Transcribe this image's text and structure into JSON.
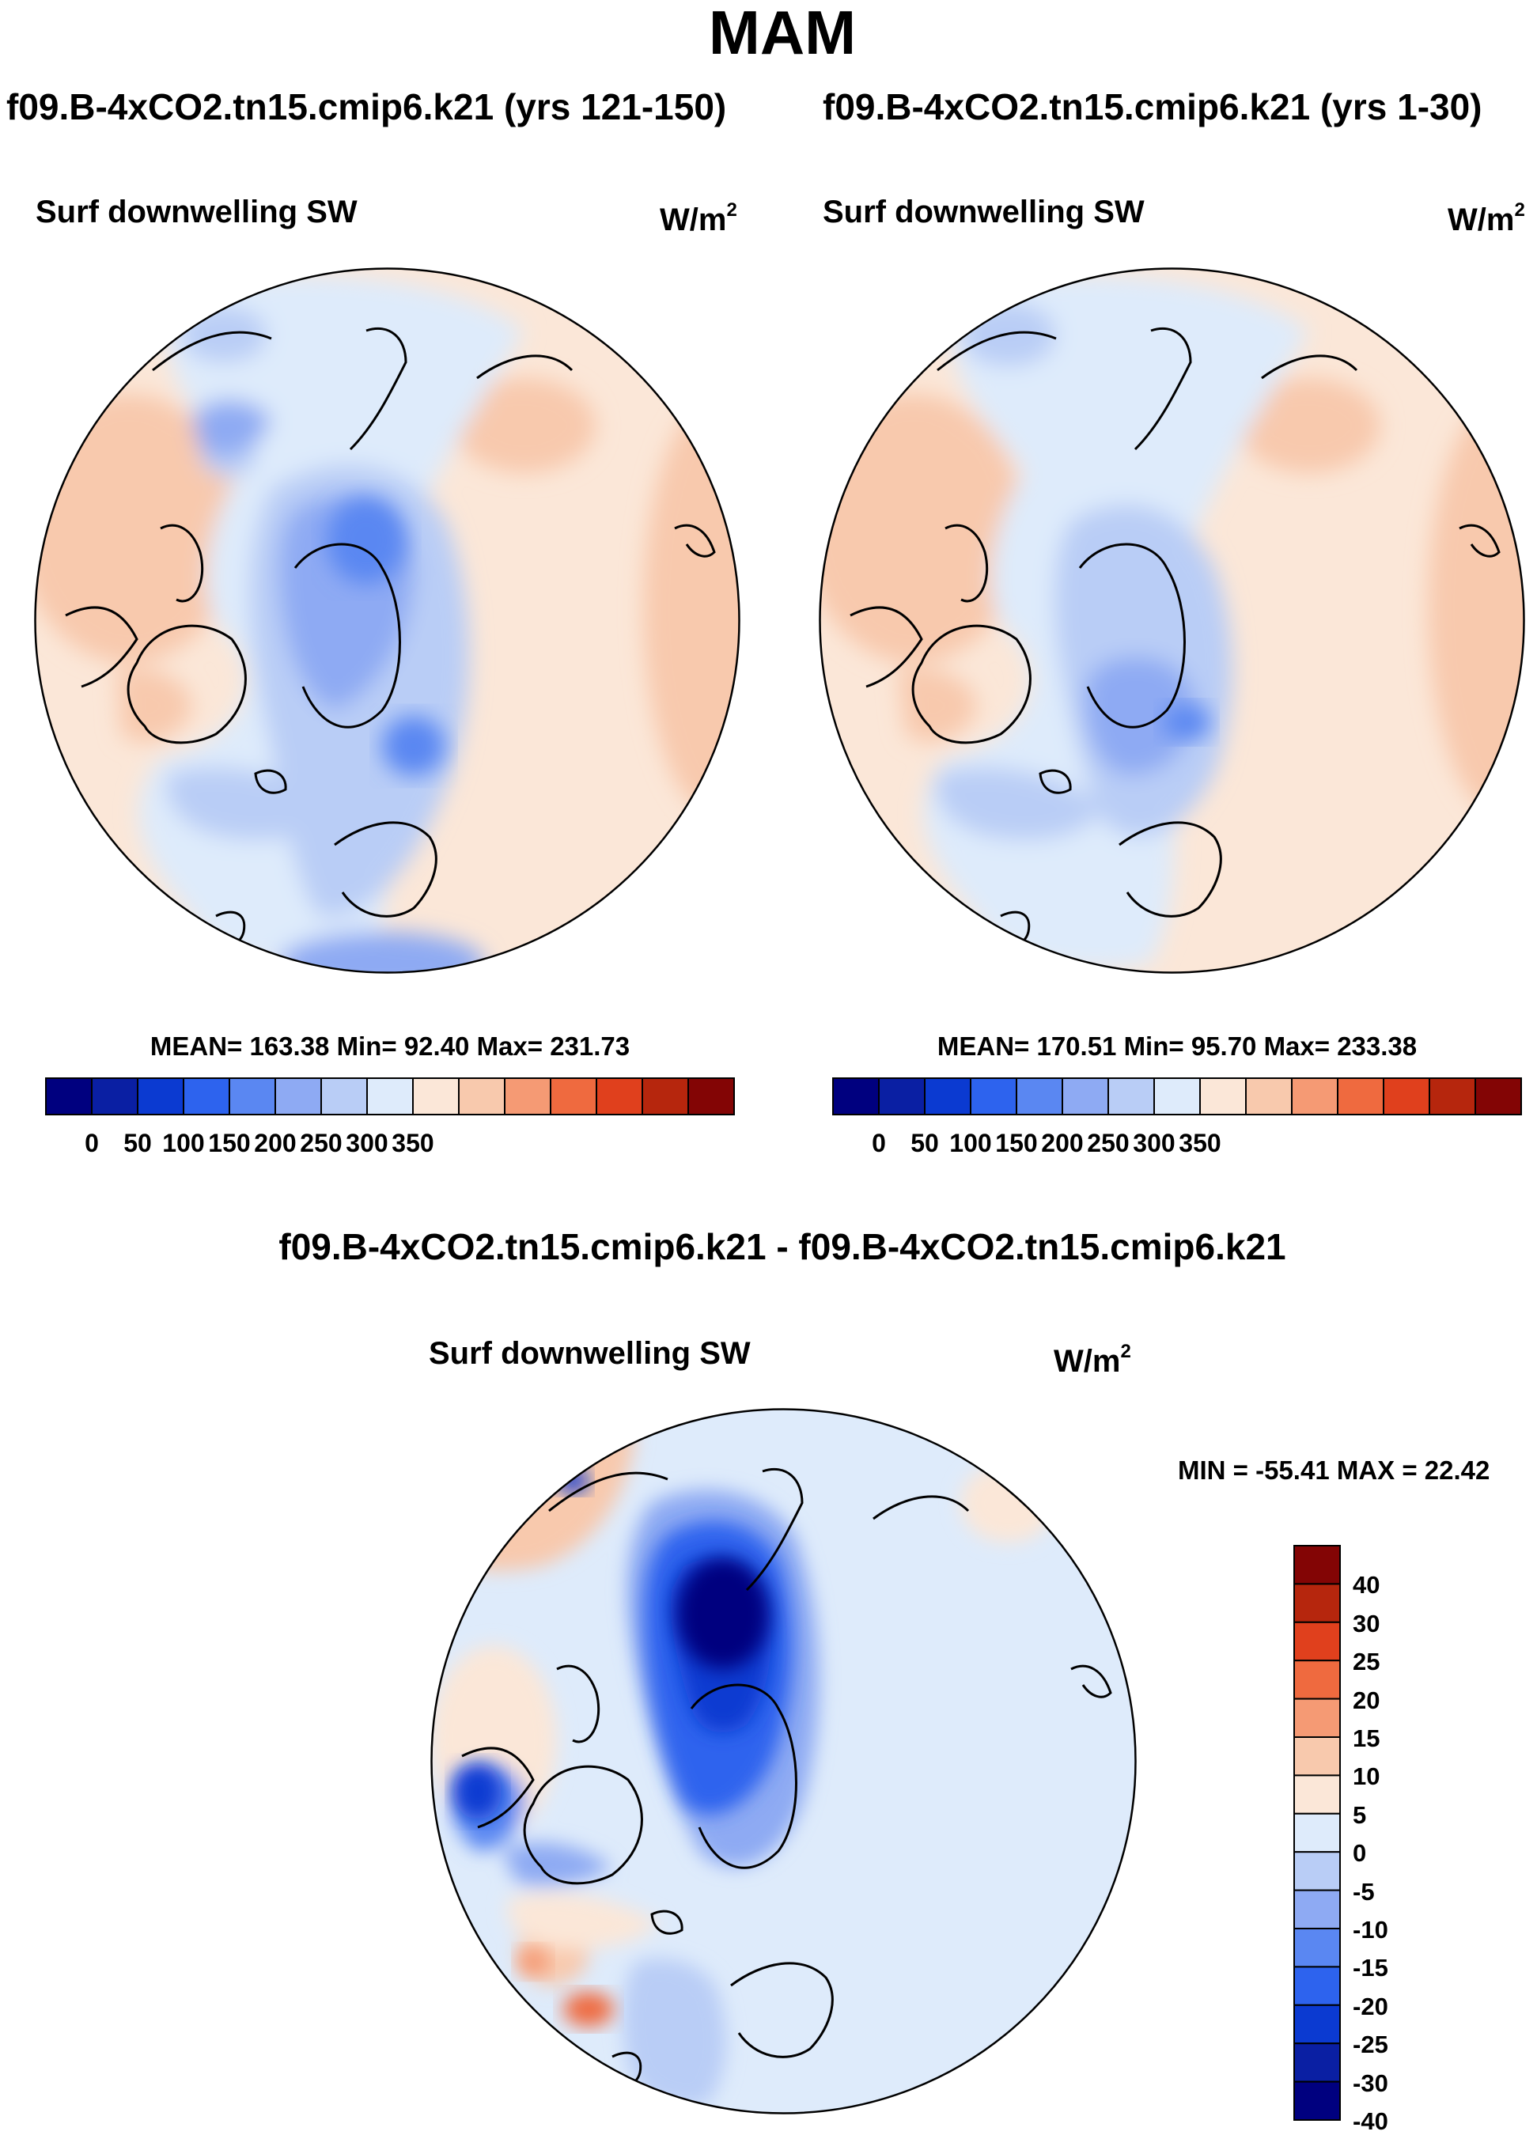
{
  "figure": {
    "title": "MAM",
    "colors": {
      "coast": "#000000",
      "abs_levels": [
        "#00007f",
        "#0a1fa3",
        "#0b3ad1",
        "#2d63ee",
        "#5a87f2",
        "#8eaaf3",
        "#b9cdf6",
        "#deebfb",
        "#fbe7d8",
        "#f8c9ad",
        "#f59a74",
        "#ef6a3f",
        "#e0401d",
        "#b6260d",
        "#830505"
      ],
      "diff_levels": [
        "#00007f",
        "#0a1fa3",
        "#0b3ad1",
        "#2d63ee",
        "#5a87f2",
        "#8eaaf3",
        "#b9cdf6",
        "#deebfb",
        "#fbe7d8",
        "#f8c9ad",
        "#f59a74",
        "#ef6a3f",
        "#e0401d",
        "#b6260d",
        "#830505"
      ]
    }
  },
  "panels": {
    "left": {
      "case": "f09.B-4xCO2.tn15.cmip6.k21 (yrs 121-150)",
      "variable": "Surf downwelling SW",
      "units": "W/m",
      "units_exp": "2",
      "stats": "MEAN= 163.38  Min=  92.40  Max= 231.73",
      "colorbar_ticks": [
        "0",
        "50",
        "100",
        "150",
        "200",
        "250",
        "300",
        "350"
      ]
    },
    "right": {
      "case": "f09.B-4xCO2.tn15.cmip6.k21 (yrs 1-30)",
      "variable": "Surf downwelling SW",
      "units": "W/m",
      "units_exp": "2",
      "stats": "MEAN= 170.51  Min=  95.70  Max= 233.38",
      "colorbar_ticks": [
        "0",
        "50",
        "100",
        "150",
        "200",
        "250",
        "300",
        "350"
      ]
    },
    "diff": {
      "title": "f09.B-4xCO2.tn15.cmip6.k21 - f09.B-4xCO2.tn15.cmip6.k21",
      "variable": "Surf downwelling SW",
      "units": "W/m",
      "units_exp": "2",
      "stats": "MIN = -55.41 MAX =  22.42",
      "colorbar_ticks": [
        "40",
        "30",
        "25",
        "20",
        "15",
        "10",
        "5",
        "0",
        "-5",
        "-10",
        "-15",
        "-20",
        "-25",
        "-30",
        "-40"
      ]
    }
  }
}
